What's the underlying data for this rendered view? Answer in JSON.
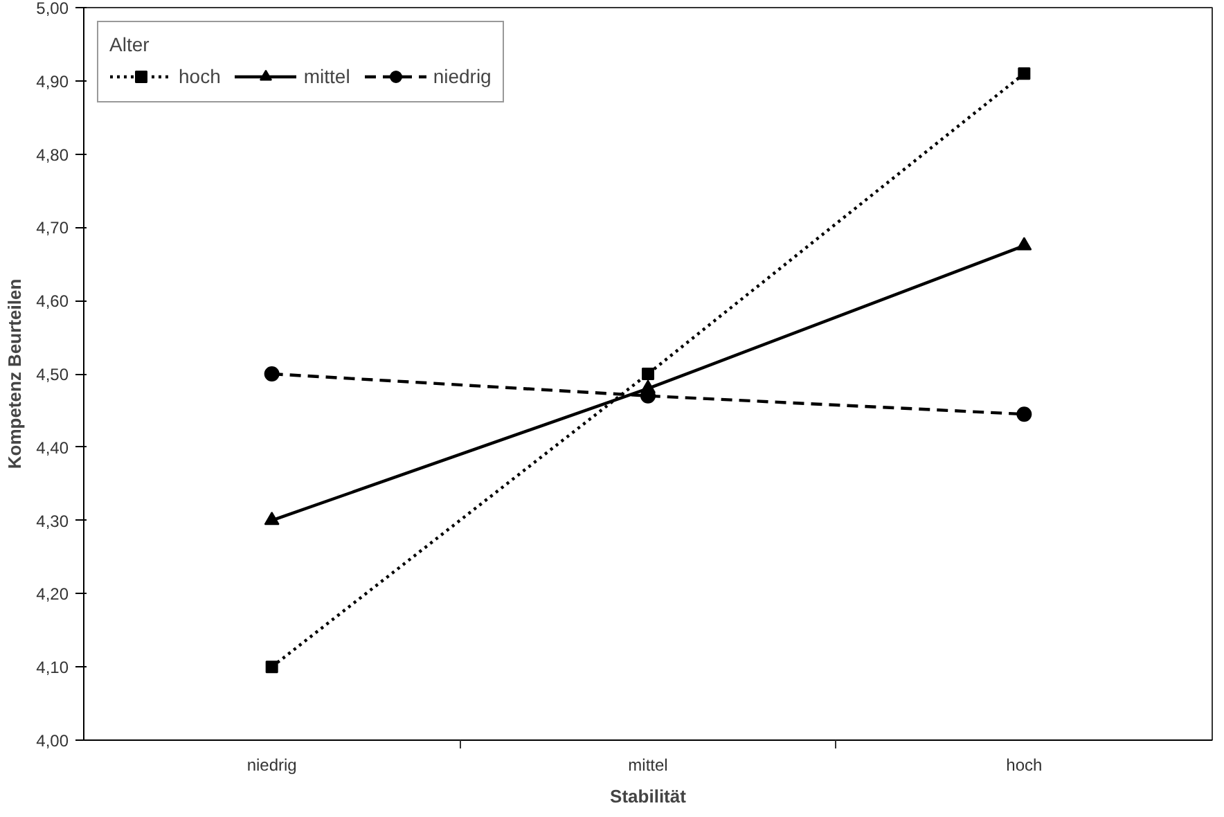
{
  "chart_data": {
    "type": "line",
    "xlabel": "Stabilität",
    "ylabel": "Kompetenz Beurteilen",
    "legend_title": "Alter",
    "categories": [
      "niedrig",
      "mittel",
      "hoch"
    ],
    "series": [
      {
        "name": "hoch",
        "color": "#000000",
        "values": [
          4.1,
          4.5,
          4.91
        ],
        "marker": "square",
        "line_style": "dotted"
      },
      {
        "name": "mittel",
        "color": "#000000",
        "values": [
          4.3,
          4.48,
          4.675
        ],
        "marker": "triangle",
        "line_style": "solid"
      },
      {
        "name": "niedrig",
        "color": "#000000",
        "values": [
          4.5,
          4.47,
          4.445
        ],
        "marker": "circle",
        "line_style": "dashed"
      }
    ],
    "ylim": [
      4.0,
      5.0
    ],
    "yticks": [
      {
        "value": 4.0,
        "label": "4,00"
      },
      {
        "value": 4.1,
        "label": "4,10"
      },
      {
        "value": 4.2,
        "label": "4,20"
      },
      {
        "value": 4.3,
        "label": "4,30"
      },
      {
        "value": 4.4,
        "label": "4,40"
      },
      {
        "value": 4.5,
        "label": "4,50"
      },
      {
        "value": 4.6,
        "label": "4,60"
      },
      {
        "value": 4.7,
        "label": "4,70"
      },
      {
        "value": 4.8,
        "label": "4,80"
      },
      {
        "value": 4.9,
        "label": "4,90"
      },
      {
        "value": 5.0,
        "label": "5,00"
      }
    ],
    "grid": false,
    "legend": "top left"
  }
}
